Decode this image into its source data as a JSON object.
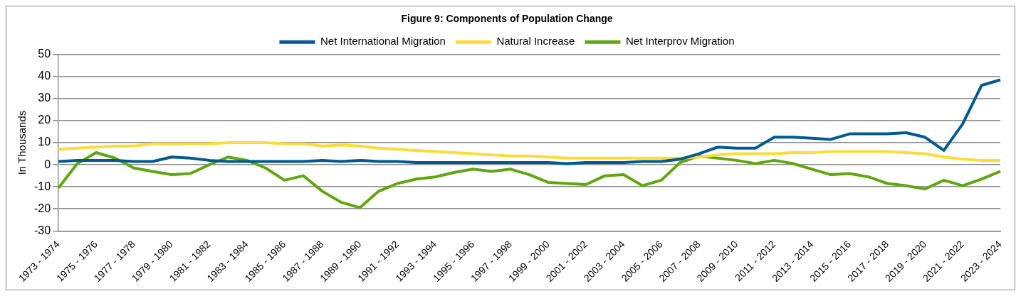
{
  "chart_data": {
    "type": "line",
    "title": "Figure 9: Components of Population Change",
    "ylabel": "In Thousands",
    "categories": [
      "1973 - 1974",
      null,
      "1975 - 1976",
      null,
      "1977 - 1978",
      null,
      "1979 - 1980",
      null,
      "1981 - 1982",
      null,
      "1983 - 1984",
      null,
      "1985 - 1986",
      null,
      "1987 - 1988",
      null,
      "1989 - 1990",
      null,
      "1991 - 1992",
      null,
      "1993 - 1994",
      null,
      "1995 - 1996",
      null,
      "1997 - 1998",
      null,
      "1999 - 2000",
      null,
      "2001 - 2002",
      null,
      "2003 - 2004",
      null,
      "2005 - 2006",
      null,
      "2007 - 2008",
      null,
      "2009 - 2010",
      null,
      "2011 - 2012",
      null,
      "2013 - 2014",
      null,
      "2015 - 2016",
      null,
      "2017 - 2018",
      null,
      "2019 - 2020",
      null,
      "2021 - 2022",
      null,
      "2023 - 2024"
    ],
    "series": [
      {
        "name": "Net International Migration",
        "color": "#005a8f",
        "values": [
          1.5,
          2,
          2,
          2,
          1.5,
          1.5,
          3.5,
          3,
          2,
          1.5,
          1.5,
          1.5,
          1.5,
          1.5,
          2,
          1.5,
          2,
          1.5,
          1.5,
          1,
          1,
          1,
          1,
          1,
          1,
          1,
          1,
          0.5,
          1,
          1,
          1,
          1.5,
          1.5,
          2.5,
          5,
          8,
          7.5,
          7.5,
          12.5,
          12.5,
          12,
          11.5,
          14,
          14,
          14,
          14.5,
          12.5,
          6.5,
          18.5,
          36,
          38.5
        ]
      },
      {
        "name": "Natural Increase",
        "color": "#fcdc3c",
        "values": [
          7,
          7.5,
          8,
          8.5,
          8.5,
          9.5,
          9.5,
          9.5,
          9.5,
          10,
          10,
          10,
          9.5,
          9.5,
          8.5,
          9,
          8.5,
          7.5,
          7,
          6.5,
          6,
          5.5,
          5,
          4.5,
          4,
          4,
          3.5,
          3,
          3,
          3,
          3,
          3,
          3,
          3,
          3.5,
          4.5,
          5,
          5,
          5,
          5.5,
          5.5,
          6,
          6,
          6,
          6,
          5.5,
          5,
          3.5,
          2.5,
          2,
          2
        ]
      },
      {
        "name": "Net Interprov Migration",
        "color": "#62a60f",
        "values": [
          -10.5,
          0.5,
          5.5,
          3,
          -1.5,
          -3,
          -4.5,
          -4,
          0,
          3.5,
          2,
          -1.5,
          -7,
          -5,
          -12,
          -17,
          -19.5,
          -12,
          -8.5,
          -6.5,
          -5.5,
          -3.5,
          -2,
          -3,
          -2,
          -4.5,
          -8,
          -8.5,
          -9,
          -5,
          -4.5,
          -9.5,
          -7,
          1,
          4,
          3,
          2,
          0.5,
          2,
          0.5,
          -2,
          -4.5,
          -4,
          -5.5,
          -8.5,
          -9.5,
          -11,
          -7,
          -9.5,
          -6.5,
          -3
        ]
      }
    ],
    "ylim": [
      -30,
      50
    ],
    "yticks": [
      -30,
      -20,
      -10,
      0,
      10,
      20,
      30,
      40,
      50
    ],
    "grid": "y",
    "legend": "top",
    "marker": "none",
    "line_style": "solid"
  }
}
